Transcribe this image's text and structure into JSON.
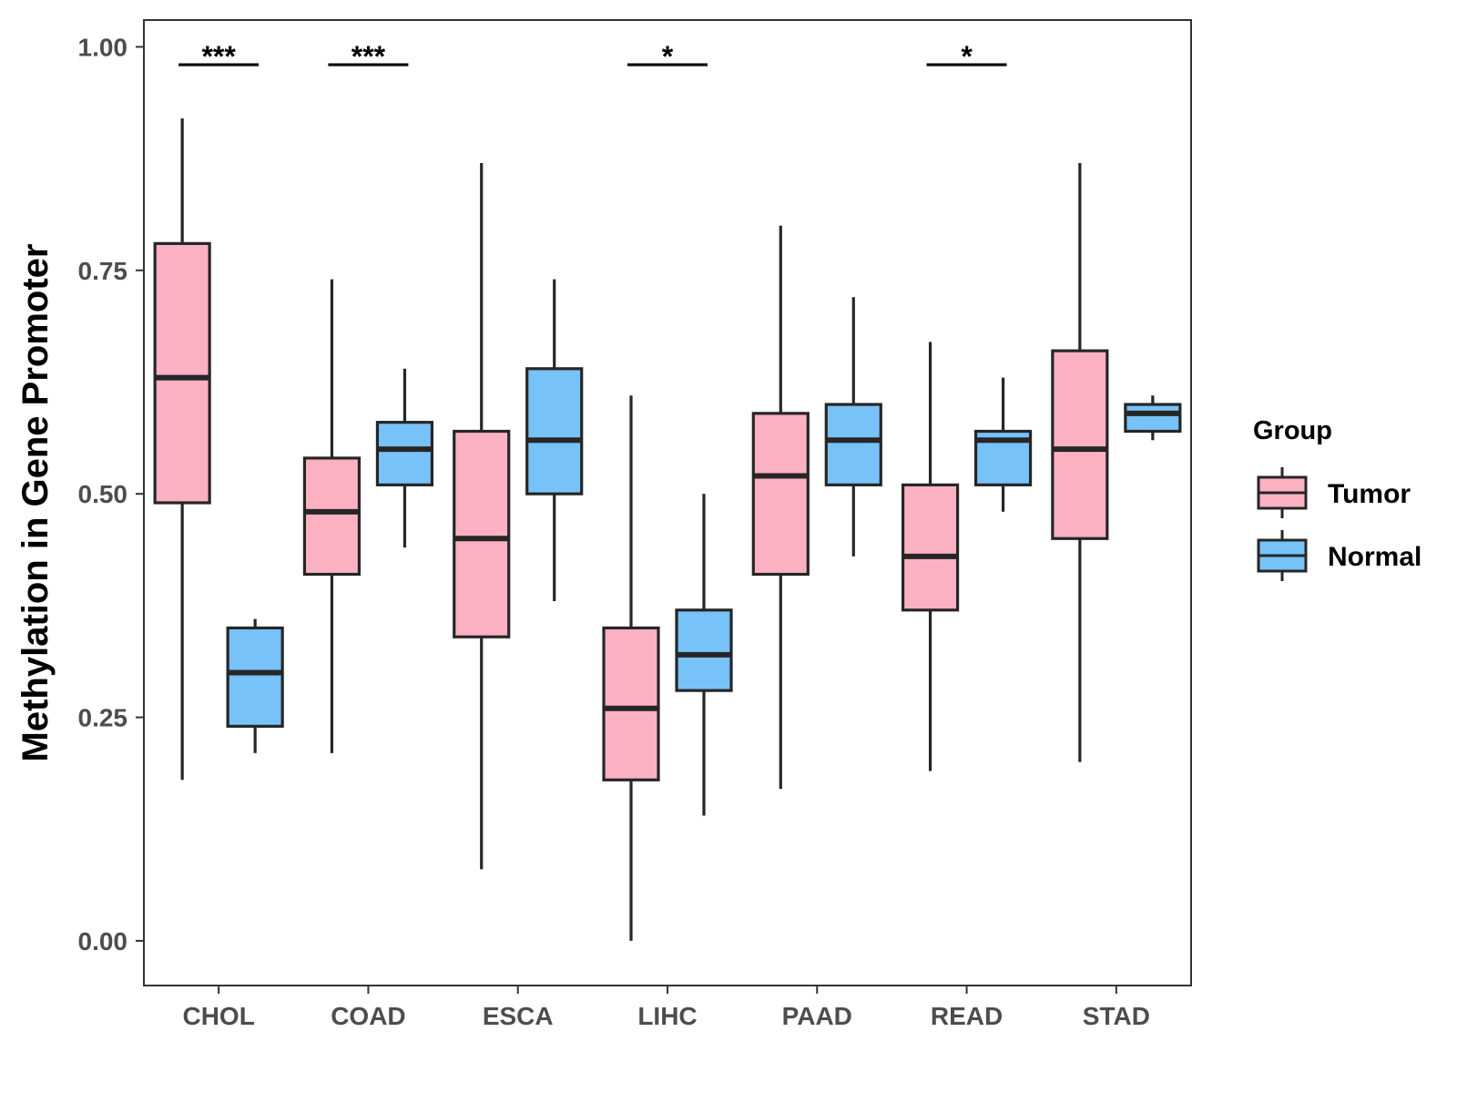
{
  "chart_data": {
    "type": "boxplot",
    "title": "",
    "xlabel": "",
    "ylabel": "Methylation in Gene Promoter",
    "ylim": [
      -0.05,
      1.03
    ],
    "yticks": [
      0.0,
      0.25,
      0.5,
      0.75,
      1.0
    ],
    "ytick_labels": [
      "0.00",
      "0.25",
      "0.50",
      "0.75",
      "1.00"
    ],
    "categories": [
      "CHOL",
      "COAD",
      "ESCA",
      "LIHC",
      "PAAD",
      "READ",
      "STAD"
    ],
    "legend": {
      "title": "Group",
      "position": "right",
      "entries": [
        {
          "name": "Tumor",
          "color": "#fcb1c3"
        },
        {
          "name": "Normal",
          "color": "#77c2f9"
        }
      ]
    },
    "series": [
      {
        "name": "Tumor",
        "color": "#fcb1c3",
        "boxes": [
          {
            "min": 0.18,
            "q1": 0.49,
            "median": 0.63,
            "q3": 0.78,
            "max": 0.92
          },
          {
            "min": 0.21,
            "q1": 0.41,
            "median": 0.48,
            "q3": 0.54,
            "max": 0.74
          },
          {
            "min": 0.08,
            "q1": 0.34,
            "median": 0.45,
            "q3": 0.57,
            "max": 0.87
          },
          {
            "min": 0.0,
            "q1": 0.18,
            "median": 0.26,
            "q3": 0.35,
            "max": 0.61
          },
          {
            "min": 0.17,
            "q1": 0.41,
            "median": 0.52,
            "q3": 0.59,
            "max": 0.8
          },
          {
            "min": 0.19,
            "q1": 0.37,
            "median": 0.43,
            "q3": 0.51,
            "max": 0.67
          },
          {
            "min": 0.2,
            "q1": 0.45,
            "median": 0.55,
            "q3": 0.66,
            "max": 0.87
          }
        ]
      },
      {
        "name": "Normal",
        "color": "#77c2f9",
        "boxes": [
          {
            "min": 0.21,
            "q1": 0.24,
            "median": 0.3,
            "q3": 0.35,
            "max": 0.36
          },
          {
            "min": 0.44,
            "q1": 0.51,
            "median": 0.55,
            "q3": 0.58,
            "max": 0.64
          },
          {
            "min": 0.38,
            "q1": 0.5,
            "median": 0.56,
            "q3": 0.64,
            "max": 0.74
          },
          {
            "min": 0.14,
            "q1": 0.28,
            "median": 0.32,
            "q3": 0.37,
            "max": 0.5
          },
          {
            "min": 0.43,
            "q1": 0.51,
            "median": 0.56,
            "q3": 0.6,
            "max": 0.72
          },
          {
            "min": 0.48,
            "q1": 0.51,
            "median": 0.56,
            "q3": 0.57,
            "max": 0.63
          },
          {
            "min": 0.56,
            "q1": 0.57,
            "median": 0.59,
            "q3": 0.6,
            "max": 0.61
          }
        ]
      }
    ],
    "annotations": [
      {
        "category": "CHOL",
        "label": "***",
        "y": 0.98
      },
      {
        "category": "COAD",
        "label": "***",
        "y": 0.98
      },
      {
        "category": "LIHC",
        "label": "*",
        "y": 0.98
      },
      {
        "category": "READ",
        "label": "*",
        "y": 0.98
      }
    ]
  }
}
